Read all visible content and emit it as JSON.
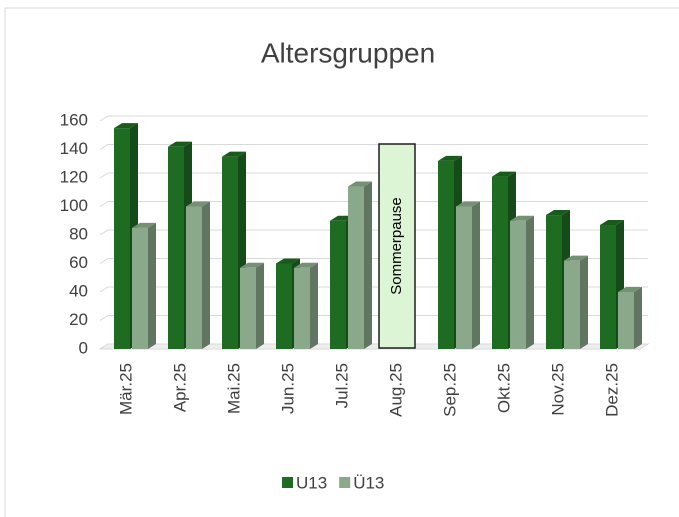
{
  "chart_data": {
    "type": "bar3d",
    "title": "Altersgruppen",
    "categories": [
      "Mär.25",
      "Apr.25",
      "Mai.25",
      "Jun.25",
      "Jul.25",
      "Aug.25",
      "Sep.25",
      "Okt.25",
      "Nov.25",
      "Dez.25"
    ],
    "series": [
      {
        "name": "U13",
        "color": "#1e6b22",
        "values": [
          155,
          142,
          135,
          60,
          90,
          null,
          132,
          121,
          94,
          87
        ]
      },
      {
        "name": "Ü13",
        "color": "#8aa98a",
        "values": [
          85,
          100,
          57,
          57,
          114,
          null,
          100,
          90,
          62,
          40
        ]
      }
    ],
    "annotation": "Sommerpause",
    "ylim": [
      0,
      160
    ],
    "yticks": [
      0,
      20,
      40,
      60,
      80,
      100,
      120,
      140,
      160
    ],
    "grid": true,
    "legend": "bottom"
  }
}
